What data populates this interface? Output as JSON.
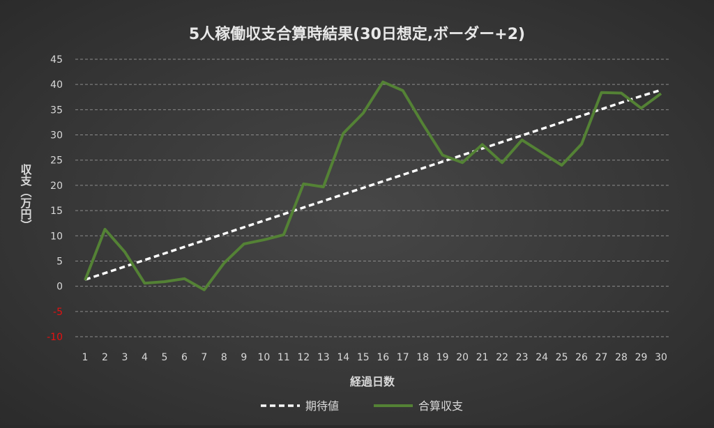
{
  "chart_data": {
    "type": "line",
    "title": "5人稼働収支合算時結果(30日想定,ボーダー+2)",
    "xlabel": "経過日数",
    "ylabel": "収支（万円）",
    "x": [
      1,
      2,
      3,
      4,
      5,
      6,
      7,
      8,
      9,
      10,
      11,
      12,
      13,
      14,
      15,
      16,
      17,
      18,
      19,
      20,
      21,
      22,
      23,
      24,
      25,
      26,
      27,
      28,
      29,
      30
    ],
    "ylim": [
      -10,
      45
    ],
    "yticks": [
      -10,
      -5,
      0,
      5,
      10,
      15,
      20,
      25,
      30,
      35,
      40,
      45
    ],
    "grid": true,
    "legend": "bottom",
    "series": [
      {
        "name": "期待値",
        "style": "dashed",
        "color": "#ffffff",
        "values": [
          1.3,
          2.6,
          3.9,
          5.2,
          6.5,
          7.8,
          9.1,
          10.4,
          11.7,
          13.0,
          14.3,
          15.6,
          16.9,
          18.2,
          19.5,
          20.8,
          22.1,
          23.4,
          24.7,
          26.0,
          27.3,
          28.6,
          29.9,
          31.2,
          32.5,
          33.8,
          35.1,
          36.4,
          37.7,
          38.9
        ]
      },
      {
        "name": "合算収支",
        "style": "solid",
        "color": "#548235",
        "values": [
          1.2,
          11.3,
          6.8,
          0.6,
          0.9,
          1.5,
          -0.7,
          4.6,
          8.4,
          9.2,
          10.2,
          20.3,
          19.7,
          30.3,
          34.3,
          40.5,
          38.8,
          32.2,
          26.0,
          24.5,
          28.1,
          24.5,
          29.0,
          26.5,
          24.0,
          28.2,
          38.4,
          38.3,
          35.3,
          38.2
        ]
      }
    ]
  },
  "colors": {
    "negative_tick": "#e81010",
    "tick": "#d9d9d9",
    "grid": "#8c8c8c",
    "title": "#e8e8e8"
  }
}
